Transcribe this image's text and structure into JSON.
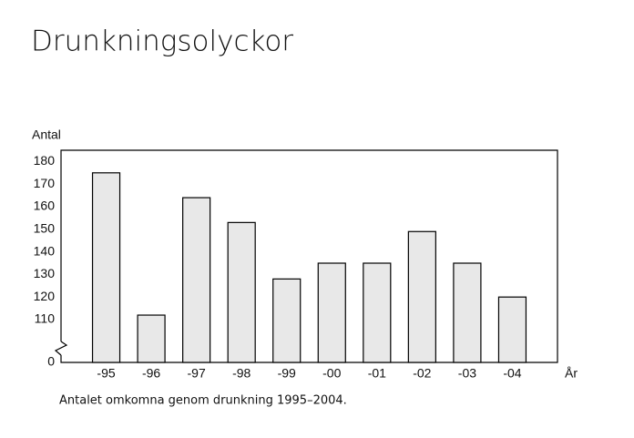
{
  "chart_data": {
    "type": "bar",
    "title": "Drunkningsolyckor",
    "y_label": "Antal",
    "x_label": "År",
    "caption": "Antalet omkomna genom drunkning 1995–2004.",
    "categories": [
      "-95",
      "-96",
      "-97",
      "-98",
      "-99",
      "-00",
      "-01",
      "-02",
      "-03",
      "-04"
    ],
    "values": [
      175,
      112,
      164,
      153,
      128,
      135,
      135,
      149,
      135,
      120
    ],
    "color": "#e8e8e8",
    "ylim": [
      0,
      185
    ],
    "yticks": [
      0,
      110,
      120,
      130,
      140,
      150,
      160,
      170,
      180
    ],
    "axis_break": true,
    "grid": false
  }
}
